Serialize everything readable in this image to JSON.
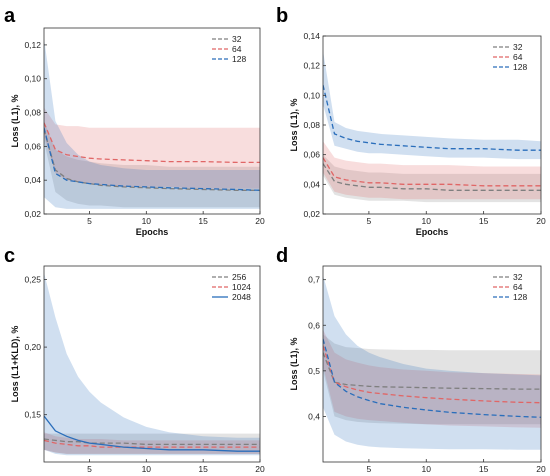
{
  "chart_data": [
    {
      "type": "line",
      "panel": "a",
      "xlabel": "Epochs",
      "ylabel": "Loss (L1), %",
      "xlim": [
        1,
        20
      ],
      "ylim": [
        0.02,
        0.13
      ],
      "xticks": [
        5,
        10,
        15,
        20
      ],
      "yticks": [
        0.02,
        0.04,
        0.06,
        0.08,
        0.1,
        0.12
      ],
      "ytick_labels": [
        "0,02",
        "0,04",
        "0,06",
        "0,08",
        "0,10",
        "0,12"
      ],
      "grid": false,
      "legend_position": "top-right",
      "x": [
        1,
        2,
        3,
        4,
        5,
        6,
        8,
        10,
        12,
        15,
        18,
        20
      ],
      "series": [
        {
          "name": "32",
          "color": "#7f7f7f",
          "dash": "dashed",
          "values": [
            0.07,
            0.046,
            0.041,
            0.039,
            0.038,
            0.037,
            0.036,
            0.0355,
            0.035,
            0.0345,
            0.034,
            0.034
          ],
          "upper": [
            0.075,
            0.058,
            0.054,
            0.052,
            0.051,
            0.05,
            0.049,
            0.049,
            0.048,
            0.048,
            0.048,
            0.048
          ],
          "lower": [
            0.063,
            0.033,
            0.028,
            0.026,
            0.025,
            0.025,
            0.024,
            0.024,
            0.024,
            0.024,
            0.024,
            0.024
          ]
        },
        {
          "name": "64",
          "color": "#e06666",
          "dash": "dashed",
          "values": [
            0.074,
            0.058,
            0.055,
            0.054,
            0.053,
            0.0525,
            0.052,
            0.0515,
            0.051,
            0.051,
            0.0505,
            0.0505
          ],
          "upper": [
            0.083,
            0.073,
            0.072,
            0.072,
            0.071,
            0.071,
            0.071,
            0.071,
            0.071,
            0.071,
            0.071,
            0.071
          ],
          "lower": [
            0.066,
            0.044,
            0.04,
            0.039,
            0.038,
            0.037,
            0.036,
            0.036,
            0.036,
            0.035,
            0.035,
            0.035
          ]
        },
        {
          "name": "128",
          "color": "#2a6ebb",
          "dash": "dashed",
          "values": [
            0.071,
            0.044,
            0.04,
            0.039,
            0.038,
            0.0375,
            0.0365,
            0.036,
            0.0355,
            0.035,
            0.0345,
            0.034
          ],
          "upper": [
            0.124,
            0.075,
            0.062,
            0.055,
            0.051,
            0.049,
            0.047,
            0.046,
            0.046,
            0.046,
            0.046,
            0.046
          ],
          "lower": [
            0.03,
            0.024,
            0.023,
            0.023,
            0.023,
            0.023,
            0.023,
            0.023,
            0.023,
            0.023,
            0.023,
            0.023
          ]
        }
      ]
    },
    {
      "type": "line",
      "panel": "b",
      "xlabel": "Epochs",
      "ylabel": "Loss (L1), %",
      "xlim": [
        1,
        20
      ],
      "ylim": [
        0.02,
        0.14
      ],
      "xticks": [
        5,
        10,
        15,
        20
      ],
      "yticks": [
        0.02,
        0.04,
        0.06,
        0.08,
        0.1,
        0.12,
        0.14
      ],
      "ytick_labels": [
        "0,02",
        "0,04",
        "0,06",
        "0,08",
        "0,10",
        "0,12",
        "0,14"
      ],
      "grid": false,
      "legend_position": "top-right",
      "x": [
        1,
        2,
        3,
        4,
        5,
        6,
        8,
        10,
        12,
        15,
        18,
        20
      ],
      "series": [
        {
          "name": "32",
          "color": "#7f7f7f",
          "dash": "dashed",
          "values": [
            0.054,
            0.042,
            0.04,
            0.039,
            0.038,
            0.038,
            0.037,
            0.037,
            0.036,
            0.036,
            0.036,
            0.036
          ],
          "upper": [
            0.06,
            0.052,
            0.05,
            0.049,
            0.048,
            0.048,
            0.047,
            0.047,
            0.047,
            0.047,
            0.047,
            0.047
          ],
          "lower": [
            0.046,
            0.033,
            0.031,
            0.03,
            0.029,
            0.029,
            0.029,
            0.028,
            0.028,
            0.028,
            0.028,
            0.028
          ]
        },
        {
          "name": "64",
          "color": "#e06666",
          "dash": "dashed",
          "values": [
            0.058,
            0.045,
            0.043,
            0.042,
            0.041,
            0.041,
            0.04,
            0.04,
            0.04,
            0.039,
            0.039,
            0.039
          ],
          "upper": [
            0.069,
            0.058,
            0.056,
            0.055,
            0.054,
            0.054,
            0.053,
            0.053,
            0.053,
            0.052,
            0.052,
            0.052
          ],
          "lower": [
            0.048,
            0.035,
            0.033,
            0.032,
            0.031,
            0.031,
            0.03,
            0.03,
            0.03,
            0.03,
            0.03,
            0.03
          ]
        },
        {
          "name": "128",
          "color": "#2a6ebb",
          "dash": "dashed",
          "values": [
            0.107,
            0.074,
            0.071,
            0.069,
            0.068,
            0.067,
            0.066,
            0.065,
            0.064,
            0.064,
            0.063,
            0.063
          ],
          "upper": [
            0.13,
            0.082,
            0.078,
            0.076,
            0.075,
            0.074,
            0.073,
            0.072,
            0.071,
            0.07,
            0.07,
            0.069
          ],
          "lower": [
            0.094,
            0.066,
            0.064,
            0.062,
            0.061,
            0.061,
            0.06,
            0.059,
            0.058,
            0.058,
            0.057,
            0.057
          ]
        }
      ]
    },
    {
      "type": "line",
      "panel": "c",
      "xlabel": "Epochs",
      "ylabel": "Loss (L1+KLD), %",
      "xlim": [
        1,
        20
      ],
      "ylim": [
        0.115,
        0.26
      ],
      "xticks": [
        5,
        10,
        15,
        20
      ],
      "yticks": [
        0.15,
        0.2,
        0.25
      ],
      "ytick_labels": [
        "0,15",
        "0,20",
        "0,25"
      ],
      "grid": false,
      "legend_position": "top-right",
      "x": [
        1,
        2,
        3,
        4,
        5,
        6,
        8,
        10,
        12,
        15,
        18,
        20
      ],
      "series": [
        {
          "name": "256",
          "color": "#7f7f7f",
          "dash": "dashed",
          "values": [
            0.132,
            0.131,
            0.13,
            0.13,
            0.129,
            0.129,
            0.129,
            0.128,
            0.128,
            0.128,
            0.128,
            0.128
          ],
          "upper": [
            0.136,
            0.136,
            0.136,
            0.136,
            0.136,
            0.136,
            0.136,
            0.136,
            0.136,
            0.136,
            0.136,
            0.136
          ],
          "lower": [
            0.124,
            0.122,
            0.121,
            0.121,
            0.121,
            0.121,
            0.121,
            0.121,
            0.121,
            0.121,
            0.121,
            0.121
          ]
        },
        {
          "name": "1024",
          "color": "#e06666",
          "dash": "dashed",
          "values": [
            0.131,
            0.129,
            0.128,
            0.127,
            0.127,
            0.126,
            0.126,
            0.126,
            0.126,
            0.126,
            0.126,
            0.126
          ],
          "upper": [
            0.137,
            0.134,
            0.133,
            0.132,
            0.132,
            0.132,
            0.131,
            0.131,
            0.131,
            0.131,
            0.131,
            0.131
          ],
          "lower": [
            0.124,
            0.122,
            0.121,
            0.121,
            0.121,
            0.121,
            0.121,
            0.121,
            0.121,
            0.121,
            0.121,
            0.121
          ]
        },
        {
          "name": "2048",
          "color": "#2a6ebb",
          "dash": "solid",
          "values": [
            0.149,
            0.138,
            0.134,
            0.131,
            0.129,
            0.128,
            0.126,
            0.125,
            0.124,
            0.124,
            0.123,
            0.123
          ],
          "upper": [
            0.255,
            0.222,
            0.195,
            0.178,
            0.167,
            0.159,
            0.148,
            0.141,
            0.137,
            0.134,
            0.133,
            0.133
          ],
          "lower": [
            0.124,
            0.121,
            0.12,
            0.12,
            0.12,
            0.12,
            0.12,
            0.12,
            0.12,
            0.12,
            0.12,
            0.12
          ]
        }
      ]
    },
    {
      "type": "line",
      "panel": "d",
      "xlabel": "Epochs",
      "ylabel": "Loss (L1), %",
      "xlim": [
        1,
        20
      ],
      "ylim": [
        0.3,
        0.73
      ],
      "xticks": [
        5,
        10,
        15,
        20
      ],
      "yticks": [
        0.4,
        0.5,
        0.6,
        0.7
      ],
      "ytick_labels": [
        "0,4",
        "0,5",
        "0,6",
        "0,7"
      ],
      "grid": false,
      "legend_position": "top-right",
      "x": [
        1,
        2,
        3,
        4,
        5,
        6,
        8,
        10,
        12,
        15,
        18,
        20
      ],
      "series": [
        {
          "name": "32",
          "color": "#7f7f7f",
          "dash": "dashed",
          "values": [
            0.54,
            0.475,
            0.47,
            0.468,
            0.466,
            0.465,
            0.464,
            0.463,
            0.462,
            0.461,
            0.46,
            0.46
          ],
          "upper": [
            0.58,
            0.56,
            0.552,
            0.55,
            0.548,
            0.547,
            0.546,
            0.546,
            0.545,
            0.545,
            0.545,
            0.545
          ],
          "lower": [
            0.5,
            0.4,
            0.392,
            0.388,
            0.386,
            0.385,
            0.384,
            0.383,
            0.383,
            0.383,
            0.383,
            0.383
          ]
        },
        {
          "name": "64",
          "color": "#e06666",
          "dash": "dashed",
          "values": [
            0.555,
            0.475,
            0.465,
            0.458,
            0.453,
            0.45,
            0.445,
            0.441,
            0.438,
            0.434,
            0.431,
            0.43
          ],
          "upper": [
            0.59,
            0.54,
            0.525,
            0.518,
            0.512,
            0.508,
            0.503,
            0.5,
            0.497,
            0.495,
            0.493,
            0.492
          ],
          "lower": [
            0.51,
            0.41,
            0.4,
            0.395,
            0.392,
            0.39,
            0.386,
            0.383,
            0.38,
            0.378,
            0.376,
            0.375
          ]
        },
        {
          "name": "128",
          "color": "#2a6ebb",
          "dash": "dashed",
          "values": [
            0.57,
            0.475,
            0.455,
            0.443,
            0.435,
            0.428,
            0.42,
            0.414,
            0.409,
            0.404,
            0.4,
            0.398
          ],
          "upper": [
            0.71,
            0.62,
            0.58,
            0.555,
            0.54,
            0.53,
            0.515,
            0.505,
            0.5,
            0.495,
            0.492,
            0.49
          ],
          "lower": [
            0.42,
            0.36,
            0.345,
            0.338,
            0.334,
            0.332,
            0.33,
            0.329,
            0.328,
            0.328,
            0.327,
            0.327
          ]
        }
      ]
    }
  ]
}
